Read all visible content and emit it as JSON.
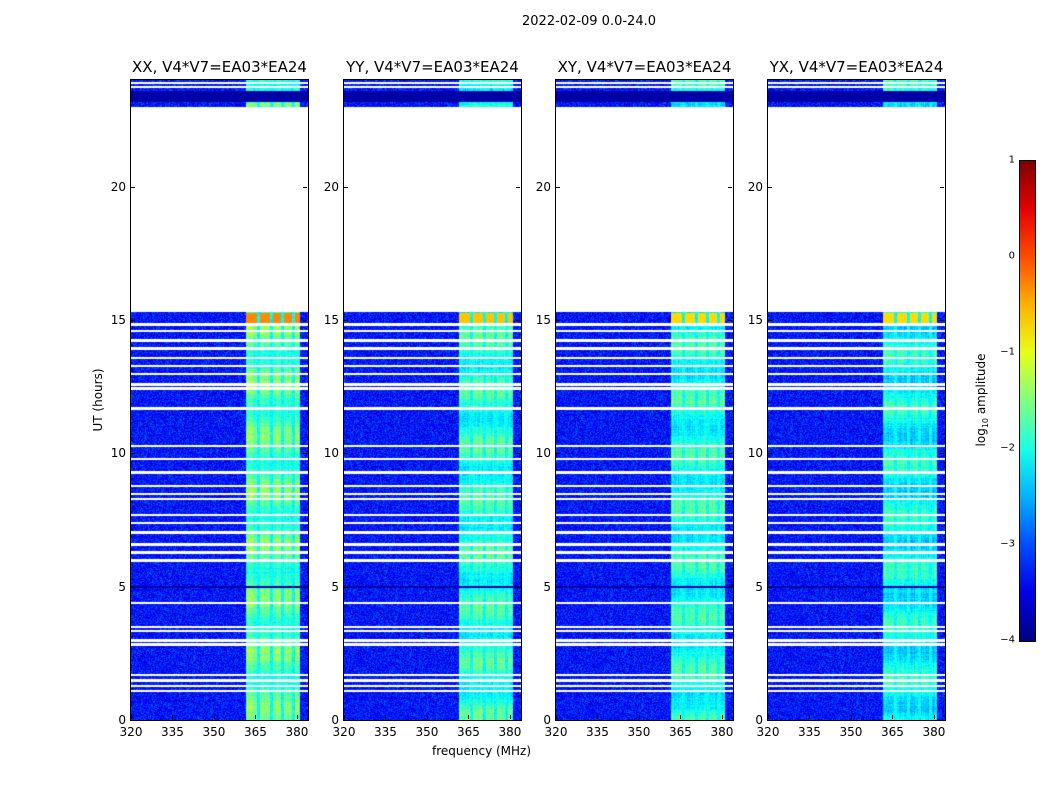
{
  "chart_data": {
    "type": "heatmap",
    "title": "2022-02-09 0.0-24.0",
    "xlabel": "frequency (MHz)",
    "ylabel": "UT (hours)",
    "xlim": [
      320,
      384
    ],
    "ylim": [
      0,
      24
    ],
    "xticks": [
      "320",
      "335",
      "350",
      "365",
      "380"
    ],
    "xtick_values": [
      320,
      335,
      350,
      365,
      380
    ],
    "yticks": [
      "0",
      "5",
      "10",
      "15",
      "20"
    ],
    "ytick_values": [
      0,
      5,
      10,
      15,
      20
    ],
    "colorbar": {
      "label_prefix": "log",
      "label_sub": "10",
      "label_suffix": " amplitude",
      "colormap": "jet",
      "range": [
        -4,
        1
      ],
      "ticks": [
        "1",
        "0",
        "−1",
        "−2",
        "−3",
        "−4"
      ],
      "tick_values": [
        1,
        0,
        -1,
        -2,
        -3,
        -4
      ]
    },
    "background_log_amplitude": -3.3,
    "bright_band_mhz": [
      361.5,
      381
    ],
    "band_sub_channel_gaps_mhz": [
      366,
      370.5,
      374.5,
      378.5
    ],
    "empty_time_range_hours": [
      15.3,
      23.0
    ],
    "dark_time_ranges_hours": [
      [
        23.2,
        23.6
      ],
      [
        4.98,
        5.05
      ]
    ],
    "flagged_times_hours": [
      23.9,
      23.75,
      14.85,
      14.6,
      14.25,
      13.95,
      13.6,
      13.3,
      13.0,
      12.6,
      12.45,
      11.7,
      10.3,
      9.8,
      9.3,
      8.8,
      8.5,
      8.3,
      7.7,
      7.4,
      7.05,
      6.6,
      6.3,
      6.0,
      4.4,
      3.5,
      3.35,
      3.0,
      2.85,
      1.7,
      1.5,
      1.3,
      1.1
    ],
    "panels": [
      {
        "title": "XX, V4*V7=EA03*EA24",
        "band_log_amplitude": -1.2,
        "peak_log_amplitude": -0.3
      },
      {
        "title": "YY, V4*V7=EA03*EA24",
        "band_log_amplitude": -1.4,
        "peak_log_amplitude": -0.6
      },
      {
        "title": "XY, V4*V7=EA03*EA24",
        "band_log_amplitude": -1.5,
        "peak_log_amplitude": -0.7
      },
      {
        "title": "YX, V4*V7=EA03*EA24",
        "band_log_amplitude": -1.6,
        "peak_log_amplitude": -0.7
      }
    ]
  }
}
